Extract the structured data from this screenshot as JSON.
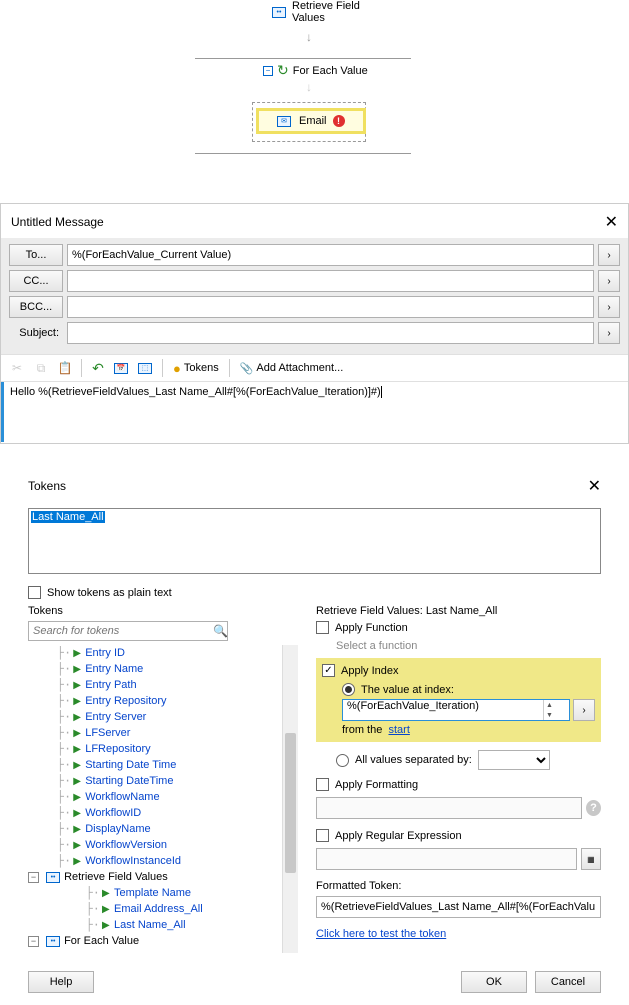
{
  "colors": {
    "highlight_bg": "#f0e888",
    "highlight_border": "#f0e060",
    "link": "#0645cc",
    "accent": "#2a8fd8"
  },
  "workflow": {
    "retrieve_label_l1": "Retrieve Field",
    "retrieve_label_l2": "Values",
    "foreach_label": "For Each Value",
    "email_label": "Email"
  },
  "message": {
    "title": "Untitled Message",
    "to_label": "To...",
    "to_value": "%(ForEachValue_Current Value)",
    "cc_label": "CC...",
    "cc_value": "",
    "bcc_label": "BCC...",
    "bcc_value": "",
    "subject_label": "Subject:",
    "subject_value": "",
    "tokens_btn": "Tokens",
    "attachment_btn": "Add Attachment...",
    "body_text": "Hello %(RetrieveFieldValues_Last Name_All#[%(ForEachValue_Iteration)]#)"
  },
  "tokens_dialog": {
    "title": "Tokens",
    "selected_token": "Last Name_All",
    "plain_text_label": "Show tokens as plain text",
    "plain_text_checked": false,
    "left_title": "Tokens",
    "search_placeholder": "Search for tokens",
    "tree": {
      "items": [
        "Entry ID",
        "Entry Name",
        "Entry Path",
        "Entry Repository",
        "Entry Server",
        "LFServer",
        "LFRepository",
        "Starting Date Time",
        "Starting DateTime",
        "WorkflowName",
        "WorkflowID",
        "DisplayName",
        "WorkflowVersion",
        "WorkflowInstanceId"
      ],
      "branch1_label": "Retrieve Field Values",
      "branch1_items": [
        "Template Name",
        "Email Address_All",
        "Last Name_All"
      ],
      "branch2_label": "For Each Value"
    },
    "right": {
      "header": "Retrieve Field Values: Last Name_All",
      "apply_function_label": "Apply Function",
      "apply_function_checked": false,
      "select_function_hint": "Select a function",
      "apply_index_label": "Apply Index",
      "apply_index_checked": true,
      "value_at_index_label": "The value at index:",
      "value_at_index_checked": true,
      "index_value": "%(ForEachValue_Iteration)",
      "from_the": "from the",
      "start_link": "start",
      "all_values_label": "All values separated by:",
      "all_values_checked": false,
      "apply_formatting_label": "Apply Formatting",
      "apply_formatting_checked": false,
      "apply_regex_label": "Apply Regular Expression",
      "apply_regex_checked": false,
      "formatted_token_label": "Formatted Token:",
      "formatted_token_value": "%(RetrieveFieldValues_Last Name_All#[%(ForEachValu",
      "test_link": "Click here to test the token"
    }
  },
  "buttons": {
    "help": "Help",
    "ok": "OK",
    "cancel": "Cancel"
  }
}
